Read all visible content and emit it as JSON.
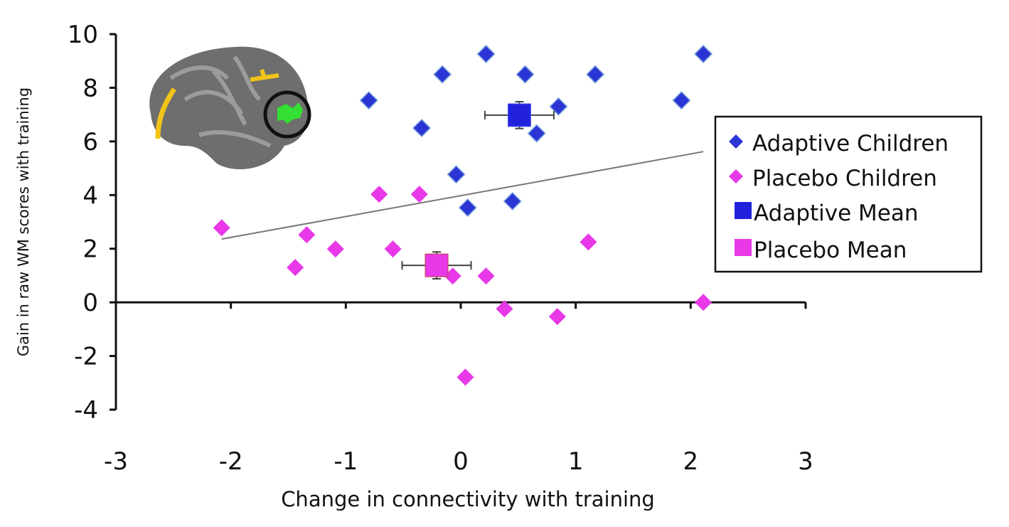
{
  "chart_data": {
    "type": "scatter",
    "xlabel": "Change in connectivity with training",
    "ylabel": "Gain in raw WM scores with training",
    "xlim": [
      -3,
      3
    ],
    "ylim": [
      -4,
      10
    ],
    "xticks": [
      "-3",
      "-2",
      "-1",
      "0",
      "1",
      "2",
      "3"
    ],
    "yticks": [
      "10",
      "8",
      "6",
      "4",
      "2",
      "0",
      "-2",
      "-4"
    ],
    "legend_position": "right",
    "series": [
      {
        "name": "Adaptive Children",
        "marker": "diamond",
        "color": "#2b35d4",
        "points": [
          [
            -0.8,
            7.53
          ],
          [
            -0.16,
            8.5
          ],
          [
            0.22,
            9.26
          ],
          [
            0.56,
            8.5
          ],
          [
            1.17,
            8.5
          ],
          [
            2.11,
            9.26
          ],
          [
            1.92,
            7.53
          ],
          [
            0.85,
            7.3
          ],
          [
            0.66,
            6.3
          ],
          [
            -0.34,
            6.5
          ],
          [
            -0.04,
            4.77
          ],
          [
            0.06,
            3.53
          ],
          [
            0.45,
            3.77
          ]
        ]
      },
      {
        "name": "Placebo Children",
        "marker": "diamond",
        "color": "#e838e8",
        "points": [
          [
            -2.08,
            2.78
          ],
          [
            -1.44,
            1.3
          ],
          [
            -1.34,
            2.52
          ],
          [
            -1.09,
            1.99
          ],
          [
            -0.71,
            4.03
          ],
          [
            -0.59,
            1.99
          ],
          [
            -0.36,
            4.03
          ],
          [
            -0.07,
            0.98
          ],
          [
            0.22,
            0.98
          ],
          [
            0.38,
            -0.24
          ],
          [
            0.84,
            -0.53
          ],
          [
            0.04,
            -2.79
          ],
          [
            1.11,
            2.25
          ],
          [
            2.11,
            0.0
          ]
        ]
      },
      {
        "name": "Adaptive Mean",
        "marker": "square",
        "color": "#2222dd",
        "points": [
          [
            0.51,
            6.98
          ]
        ],
        "xerr": 0.3,
        "yerr": 0.5
      },
      {
        "name": "Placebo Mean",
        "marker": "square",
        "color": "#e838e8",
        "points": [
          [
            -0.21,
            1.38
          ]
        ],
        "xerr": 0.3,
        "yerr": 0.5
      }
    ],
    "trendline": {
      "x": [
        -2.08,
        2.11
      ],
      "y": [
        2.36,
        5.62
      ],
      "color": "#777777"
    }
  }
}
